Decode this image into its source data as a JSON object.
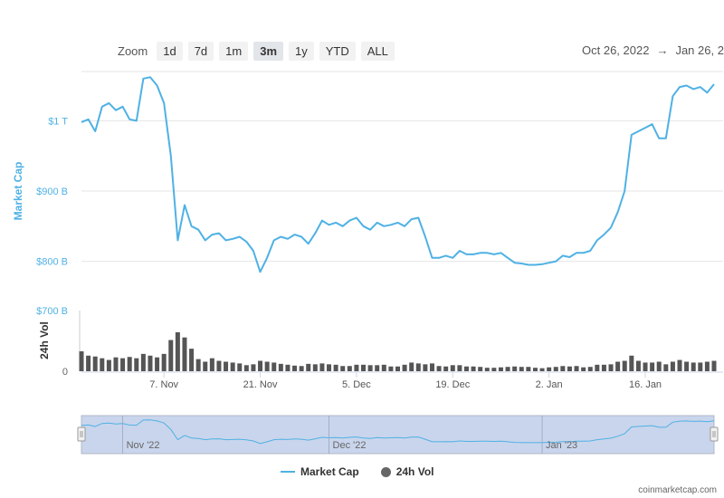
{
  "zoom": {
    "label": "Zoom",
    "buttons": [
      "1d",
      "7d",
      "1m",
      "3m",
      "1y",
      "YTD",
      "ALL"
    ],
    "active": "3m"
  },
  "range": {
    "from": "Oct 26, 2022",
    "arrow": "→",
    "to": "Jan 26, 2"
  },
  "colors": {
    "market_cap": "#4fb1e4",
    "volume": "#666666",
    "navigator_fill": "#c9d5ec"
  },
  "legend": {
    "market_cap": "Market Cap",
    "volume": "24h Vol"
  },
  "credits": "coinmarketcap.com",
  "chart_data": [
    {
      "type": "line",
      "ylabel": "Market Cap",
      "yticks": [
        {
          "value": 800,
          "label": "$800 B"
        },
        {
          "value": 900,
          "label": "$900 B"
        },
        {
          "value": 1000,
          "label": "$1 T"
        }
      ],
      "ylim": [
        730,
        1070
      ],
      "xlim": [
        "2022-10-26",
        "2023-01-26"
      ],
      "xticks": [
        {
          "date": "2022-11-07",
          "label": "7. Nov"
        },
        {
          "date": "2022-11-21",
          "label": "21. Nov"
        },
        {
          "date": "2022-12-05",
          "label": "5. Dec"
        },
        {
          "date": "2022-12-19",
          "label": "19. Dec"
        },
        {
          "date": "2023-01-02",
          "label": "2. Jan"
        },
        {
          "date": "2023-01-16",
          "label": "16. Jan"
        }
      ],
      "series": [
        {
          "name": "Market Cap",
          "unit": "billion USD",
          "points": [
            [
              "2022-10-26",
              998
            ],
            [
              "2022-10-27",
              1002
            ],
            [
              "2022-10-28",
              985
            ],
            [
              "2022-10-29",
              1020
            ],
            [
              "2022-10-30",
              1025
            ],
            [
              "2022-10-31",
              1015
            ],
            [
              "2022-11-01",
              1020
            ],
            [
              "2022-11-02",
              1002
            ],
            [
              "2022-11-03",
              1000
            ],
            [
              "2022-11-04",
              1060
            ],
            [
              "2022-11-05",
              1062
            ],
            [
              "2022-11-06",
              1050
            ],
            [
              "2022-11-07",
              1025
            ],
            [
              "2022-11-08",
              950
            ],
            [
              "2022-11-09",
              830
            ],
            [
              "2022-11-10",
              880
            ],
            [
              "2022-11-11",
              850
            ],
            [
              "2022-11-12",
              845
            ],
            [
              "2022-11-13",
              830
            ],
            [
              "2022-11-14",
              838
            ],
            [
              "2022-11-15",
              840
            ],
            [
              "2022-11-16",
              830
            ],
            [
              "2022-11-17",
              832
            ],
            [
              "2022-11-18",
              835
            ],
            [
              "2022-11-19",
              828
            ],
            [
              "2022-11-20",
              815
            ],
            [
              "2022-11-21",
              785
            ],
            [
              "2022-11-22",
              805
            ],
            [
              "2022-11-23",
              830
            ],
            [
              "2022-11-24",
              835
            ],
            [
              "2022-11-25",
              832
            ],
            [
              "2022-11-26",
              838
            ],
            [
              "2022-11-27",
              835
            ],
            [
              "2022-11-28",
              825
            ],
            [
              "2022-11-29",
              840
            ],
            [
              "2022-11-30",
              858
            ],
            [
              "2022-12-01",
              852
            ],
            [
              "2022-12-02",
              855
            ],
            [
              "2022-12-03",
              850
            ],
            [
              "2022-12-04",
              858
            ],
            [
              "2022-12-05",
              862
            ],
            [
              "2022-12-06",
              850
            ],
            [
              "2022-12-07",
              845
            ],
            [
              "2022-12-08",
              855
            ],
            [
              "2022-12-09",
              850
            ],
            [
              "2022-12-10",
              852
            ],
            [
              "2022-12-11",
              855
            ],
            [
              "2022-12-12",
              850
            ],
            [
              "2022-12-13",
              860
            ],
            [
              "2022-12-14",
              862
            ],
            [
              "2022-12-15",
              835
            ],
            [
              "2022-12-16",
              805
            ],
            [
              "2022-12-17",
              805
            ],
            [
              "2022-12-18",
              808
            ],
            [
              "2022-12-19",
              805
            ],
            [
              "2022-12-20",
              815
            ],
            [
              "2022-12-21",
              810
            ],
            [
              "2022-12-22",
              810
            ],
            [
              "2022-12-23",
              812
            ],
            [
              "2022-12-24",
              812
            ],
            [
              "2022-12-25",
              810
            ],
            [
              "2022-12-26",
              812
            ],
            [
              "2022-12-27",
              805
            ],
            [
              "2022-12-28",
              798
            ],
            [
              "2022-12-29",
              797
            ],
            [
              "2022-12-30",
              795
            ],
            [
              "2022-12-31",
              795
            ],
            [
              "2023-01-01",
              796
            ],
            [
              "2023-01-02",
              798
            ],
            [
              "2023-01-03",
              800
            ],
            [
              "2023-01-04",
              808
            ],
            [
              "2023-01-05",
              806
            ],
            [
              "2023-01-06",
              812
            ],
            [
              "2023-01-07",
              812
            ],
            [
              "2023-01-08",
              815
            ],
            [
              "2023-01-09",
              830
            ],
            [
              "2023-01-10",
              838
            ],
            [
              "2023-01-11",
              848
            ],
            [
              "2023-01-12",
              870
            ],
            [
              "2023-01-13",
              900
            ],
            [
              "2023-01-14",
              980
            ],
            [
              "2023-01-15",
              985
            ],
            [
              "2023-01-16",
              990
            ],
            [
              "2023-01-17",
              995
            ],
            [
              "2023-01-18",
              975
            ],
            [
              "2023-01-19",
              975
            ],
            [
              "2023-01-20",
              1035
            ],
            [
              "2023-01-21",
              1048
            ],
            [
              "2023-01-22",
              1050
            ],
            [
              "2023-01-23",
              1045
            ],
            [
              "2023-01-24",
              1048
            ],
            [
              "2023-01-25",
              1040
            ],
            [
              "2023-01-26",
              1052
            ]
          ]
        }
      ]
    },
    {
      "type": "bar",
      "ylabel": "24h Vol",
      "yticks": [
        {
          "value": 0,
          "label": "0"
        },
        {
          "value": 700,
          "label": "$700 B"
        }
      ],
      "ylim": [
        0,
        700
      ],
      "series": [
        {
          "name": "24h Vol",
          "unit": "billion USD",
          "points": [
            [
              "2022-10-26",
              230
            ],
            [
              "2022-10-27",
              180
            ],
            [
              "2022-10-28",
              170
            ],
            [
              "2022-10-29",
              150
            ],
            [
              "2022-10-30",
              130
            ],
            [
              "2022-10-31",
              160
            ],
            [
              "2022-11-01",
              150
            ],
            [
              "2022-11-02",
              165
            ],
            [
              "2022-11-03",
              150
            ],
            [
              "2022-11-04",
              200
            ],
            [
              "2022-11-05",
              180
            ],
            [
              "2022-11-06",
              160
            ],
            [
              "2022-11-07",
              200
            ],
            [
              "2022-11-08",
              360
            ],
            [
              "2022-11-09",
              450
            ],
            [
              "2022-11-10",
              390
            ],
            [
              "2022-11-11",
              260
            ],
            [
              "2022-11-12",
              140
            ],
            [
              "2022-11-13",
              110
            ],
            [
              "2022-11-14",
              150
            ],
            [
              "2022-11-15",
              120
            ],
            [
              "2022-11-16",
              110
            ],
            [
              "2022-11-17",
              100
            ],
            [
              "2022-11-18",
              90
            ],
            [
              "2022-11-19",
              70
            ],
            [
              "2022-11-20",
              80
            ],
            [
              "2022-11-21",
              120
            ],
            [
              "2022-11-22",
              110
            ],
            [
              "2022-11-23",
              100
            ],
            [
              "2022-11-24",
              85
            ],
            [
              "2022-11-25",
              75
            ],
            [
              "2022-11-26",
              65
            ],
            [
              "2022-11-27",
              60
            ],
            [
              "2022-11-28",
              85
            ],
            [
              "2022-11-29",
              80
            ],
            [
              "2022-11-30",
              90
            ],
            [
              "2022-12-01",
              80
            ],
            [
              "2022-12-02",
              75
            ],
            [
              "2022-12-03",
              60
            ],
            [
              "2022-12-04",
              60
            ],
            [
              "2022-12-05",
              75
            ],
            [
              "2022-12-06",
              75
            ],
            [
              "2022-12-07",
              70
            ],
            [
              "2022-12-08",
              70
            ],
            [
              "2022-12-09",
              75
            ],
            [
              "2022-12-10",
              55
            ],
            [
              "2022-12-11",
              55
            ],
            [
              "2022-12-12",
              75
            ],
            [
              "2022-12-13",
              100
            ],
            [
              "2022-12-14",
              90
            ],
            [
              "2022-12-15",
              80
            ],
            [
              "2022-12-16",
              90
            ],
            [
              "2022-12-17",
              60
            ],
            [
              "2022-12-18",
              55
            ],
            [
              "2022-12-19",
              70
            ],
            [
              "2022-12-20",
              70
            ],
            [
              "2022-12-21",
              55
            ],
            [
              "2022-12-22",
              55
            ],
            [
              "2022-12-23",
              50
            ],
            [
              "2022-12-24",
              40
            ],
            [
              "2022-12-25",
              40
            ],
            [
              "2022-12-26",
              45
            ],
            [
              "2022-12-27",
              50
            ],
            [
              "2022-12-28",
              55
            ],
            [
              "2022-12-29",
              50
            ],
            [
              "2022-12-30",
              50
            ],
            [
              "2022-12-31",
              40
            ],
            [
              "2023-01-01",
              35
            ],
            [
              "2023-01-02",
              45
            ],
            [
              "2023-01-03",
              50
            ],
            [
              "2023-01-04",
              60
            ],
            [
              "2023-01-05",
              55
            ],
            [
              "2023-01-06",
              60
            ],
            [
              "2023-01-07",
              45
            ],
            [
              "2023-01-08",
              50
            ],
            [
              "2023-01-09",
              75
            ],
            [
              "2023-01-10",
              75
            ],
            [
              "2023-01-11",
              80
            ],
            [
              "2023-01-12",
              110
            ],
            [
              "2023-01-13",
              120
            ],
            [
              "2023-01-14",
              180
            ],
            [
              "2023-01-15",
              120
            ],
            [
              "2023-01-16",
              100
            ],
            [
              "2023-01-17",
              100
            ],
            [
              "2023-01-18",
              110
            ],
            [
              "2023-01-19",
              80
            ],
            [
              "2023-01-20",
              110
            ],
            [
              "2023-01-21",
              130
            ],
            [
              "2023-01-22",
              110
            ],
            [
              "2023-01-23",
              100
            ],
            [
              "2023-01-24",
              100
            ],
            [
              "2023-01-25",
              110
            ],
            [
              "2023-01-26",
              120
            ]
          ]
        }
      ]
    }
  ],
  "navigator": {
    "labels": [
      {
        "date": "2022-11-01",
        "label": "Nov '22"
      },
      {
        "date": "2022-12-01",
        "label": "Dec '22"
      },
      {
        "date": "2023-01-01",
        "label": "Jan '23"
      }
    ]
  }
}
